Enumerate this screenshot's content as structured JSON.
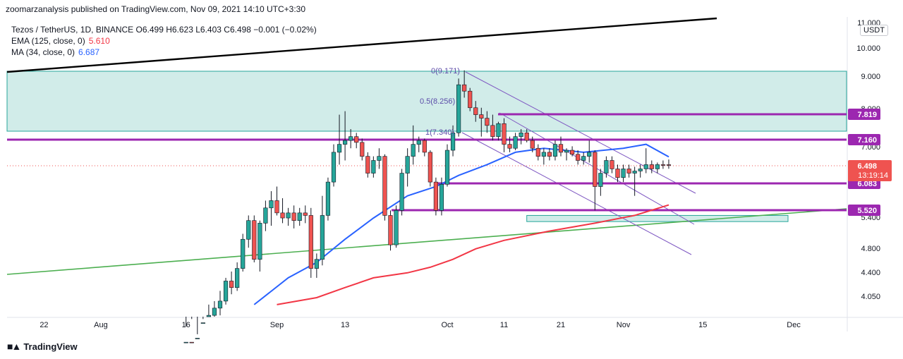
{
  "header": {
    "publish_line": "zoomarzanalysis published on TradingView.com, Nov 09, 2021 14:10 UTC+3:30"
  },
  "legend": {
    "main": "Tezos / TetherUS, 1D, BINANCE  O6.499  H6.623  L6.403  C6.498  −0.001 (−0.02%)",
    "ema_label": "EMA (125, close, 0)",
    "ema_value": "5.610",
    "ma_label": "MA (34, close, 0)",
    "ma_value": "6.687"
  },
  "currency": "USDT",
  "footer": {
    "brand": "TradingView"
  },
  "colors": {
    "up": "#26a69a",
    "down": "#ef5350",
    "ema": "#f23645",
    "ma": "#2962ff",
    "level": "#9c27b0",
    "zone_fill": "#b2dfdb",
    "channel": "#7e57c2",
    "trend_green": "#4caf50",
    "trend_black": "#000000"
  },
  "chart_data": {
    "type": "candlestick",
    "title": "Tezos / TetherUS, 1D, BINANCE",
    "y_axis_scale": "log",
    "y_ticks": [
      "11.000",
      "10.000",
      "9.000",
      "8.000",
      "7.000",
      "6.000",
      "5.400",
      "4.800",
      "4.400",
      "4.050"
    ],
    "x_ticks": [
      {
        "label": "22",
        "date": "2021-07-22"
      },
      {
        "label": "Aug",
        "date": "2021-08-01"
      },
      {
        "label": "16",
        "date": "2021-08-16"
      },
      {
        "label": "Sep",
        "date": "2021-09-01"
      },
      {
        "label": "13",
        "date": "2021-09-13"
      },
      {
        "label": "Oct",
        "date": "2021-10-01"
      },
      {
        "label": "11",
        "date": "2021-10-11"
      },
      {
        "label": "21",
        "date": "2021-10-21"
      },
      {
        "label": "Nov",
        "date": "2021-11-01"
      },
      {
        "label": "15",
        "date": "2021-11-15"
      },
      {
        "label": "Dec",
        "date": "2021-12-01"
      }
    ],
    "candles": [
      {
        "d": "2021-08-16",
        "o": 3.3,
        "h": 3.6,
        "l": 3.1,
        "c": 3.4
      },
      {
        "d": "2021-08-17",
        "o": 3.4,
        "h": 3.7,
        "l": 3.2,
        "c": 3.3
      },
      {
        "d": "2021-08-18",
        "o": 3.3,
        "h": 3.5,
        "l": 3.15,
        "c": 3.45
      },
      {
        "d": "2021-08-19",
        "o": 3.45,
        "h": 3.7,
        "l": 3.35,
        "c": 3.65
      },
      {
        "d": "2021-08-20",
        "o": 3.65,
        "h": 3.9,
        "l": 3.55,
        "c": 3.75
      },
      {
        "d": "2021-08-21",
        "o": 3.75,
        "h": 3.95,
        "l": 3.6,
        "c": 3.85
      },
      {
        "d": "2021-08-22",
        "o": 3.85,
        "h": 4.1,
        "l": 3.75,
        "c": 3.95
      },
      {
        "d": "2021-08-23",
        "o": 3.95,
        "h": 4.3,
        "l": 3.9,
        "c": 4.25
      },
      {
        "d": "2021-08-24",
        "o": 4.25,
        "h": 4.4,
        "l": 4.05,
        "c": 4.15
      },
      {
        "d": "2021-08-25",
        "o": 4.15,
        "h": 4.55,
        "l": 4.1,
        "c": 4.45
      },
      {
        "d": "2021-08-26",
        "o": 4.45,
        "h": 5.05,
        "l": 4.4,
        "c": 4.95
      },
      {
        "d": "2021-08-27",
        "o": 4.95,
        "h": 5.4,
        "l": 4.8,
        "c": 5.3
      },
      {
        "d": "2021-08-28",
        "o": 5.3,
        "h": 5.4,
        "l": 4.55,
        "c": 4.6
      },
      {
        "d": "2021-08-29",
        "o": 4.6,
        "h": 5.3,
        "l": 4.4,
        "c": 5.25
      },
      {
        "d": "2021-08-30",
        "o": 5.25,
        "h": 5.7,
        "l": 5.1,
        "c": 5.55
      },
      {
        "d": "2021-08-31",
        "o": 5.55,
        "h": 5.9,
        "l": 5.2,
        "c": 5.7
      },
      {
        "d": "2021-09-01",
        "o": 5.7,
        "h": 6.0,
        "l": 5.4,
        "c": 5.45
      },
      {
        "d": "2021-09-02",
        "o": 5.45,
        "h": 5.75,
        "l": 5.25,
        "c": 5.35
      },
      {
        "d": "2021-09-03",
        "o": 5.35,
        "h": 5.55,
        "l": 5.2,
        "c": 5.45
      },
      {
        "d": "2021-09-04",
        "o": 5.45,
        "h": 5.6,
        "l": 5.15,
        "c": 5.3
      },
      {
        "d": "2021-09-05",
        "o": 5.3,
        "h": 5.55,
        "l": 5.2,
        "c": 5.45
      },
      {
        "d": "2021-09-06",
        "o": 5.45,
        "h": 5.6,
        "l": 5.25,
        "c": 5.4
      },
      {
        "d": "2021-09-07",
        "o": 5.4,
        "h": 5.55,
        "l": 4.3,
        "c": 4.45
      },
      {
        "d": "2021-09-08",
        "o": 4.45,
        "h": 4.7,
        "l": 4.3,
        "c": 4.6
      },
      {
        "d": "2021-09-09",
        "o": 4.6,
        "h": 5.8,
        "l": 4.5,
        "c": 5.4
      },
      {
        "d": "2021-09-10",
        "o": 5.4,
        "h": 6.2,
        "l": 5.3,
        "c": 6.1
      },
      {
        "d": "2021-09-11",
        "o": 6.1,
        "h": 7.0,
        "l": 6.0,
        "c": 6.8
      },
      {
        "d": "2021-09-12",
        "o": 6.8,
        "h": 7.8,
        "l": 6.5,
        "c": 7.0
      },
      {
        "d": "2021-09-13",
        "o": 7.0,
        "h": 7.9,
        "l": 6.6,
        "c": 7.1
      },
      {
        "d": "2021-09-14",
        "o": 7.1,
        "h": 7.4,
        "l": 6.9,
        "c": 7.2
      },
      {
        "d": "2021-09-15",
        "o": 7.2,
        "h": 7.3,
        "l": 6.9,
        "c": 7.05
      },
      {
        "d": "2021-09-16",
        "o": 7.05,
        "h": 7.15,
        "l": 6.6,
        "c": 6.7
      },
      {
        "d": "2021-09-17",
        "o": 6.7,
        "h": 6.8,
        "l": 6.2,
        "c": 6.3
      },
      {
        "d": "2021-09-18",
        "o": 6.3,
        "h": 6.7,
        "l": 6.2,
        "c": 6.6
      },
      {
        "d": "2021-09-19",
        "o": 6.6,
        "h": 6.9,
        "l": 6.4,
        "c": 6.7
      },
      {
        "d": "2021-09-20",
        "o": 6.7,
        "h": 6.75,
        "l": 5.3,
        "c": 5.4
      },
      {
        "d": "2021-09-21",
        "o": 5.4,
        "h": 5.5,
        "l": 4.75,
        "c": 4.85
      },
      {
        "d": "2021-09-22",
        "o": 4.85,
        "h": 5.6,
        "l": 4.8,
        "c": 5.5
      },
      {
        "d": "2021-09-23",
        "o": 5.5,
        "h": 6.4,
        "l": 5.4,
        "c": 6.3
      },
      {
        "d": "2021-09-24",
        "o": 6.3,
        "h": 6.9,
        "l": 6.0,
        "c": 6.7
      },
      {
        "d": "2021-09-25",
        "o": 6.7,
        "h": 7.5,
        "l": 6.5,
        "c": 7.0
      },
      {
        "d": "2021-09-26",
        "o": 7.0,
        "h": 7.2,
        "l": 6.8,
        "c": 7.1
      },
      {
        "d": "2021-09-27",
        "o": 7.1,
        "h": 7.15,
        "l": 6.7,
        "c": 6.8
      },
      {
        "d": "2021-09-28",
        "o": 6.8,
        "h": 6.85,
        "l": 6.0,
        "c": 6.1
      },
      {
        "d": "2021-09-29",
        "o": 6.1,
        "h": 6.2,
        "l": 5.4,
        "c": 5.5
      },
      {
        "d": "2021-09-30",
        "o": 5.5,
        "h": 6.2,
        "l": 5.4,
        "c": 6.05
      },
      {
        "d": "2021-10-01",
        "o": 6.05,
        "h": 7.0,
        "l": 6.0,
        "c": 6.85
      },
      {
        "d": "2021-10-02",
        "o": 6.85,
        "h": 7.5,
        "l": 6.7,
        "c": 7.3
      },
      {
        "d": "2021-10-03",
        "o": 7.3,
        "h": 8.9,
        "l": 7.2,
        "c": 8.7
      },
      {
        "d": "2021-10-04",
        "o": 8.7,
        "h": 9.17,
        "l": 8.3,
        "c": 8.5
      },
      {
        "d": "2021-10-05",
        "o": 8.5,
        "h": 8.6,
        "l": 7.9,
        "c": 8.0
      },
      {
        "d": "2021-10-06",
        "o": 8.0,
        "h": 8.2,
        "l": 7.6,
        "c": 7.8
      },
      {
        "d": "2021-10-07",
        "o": 7.8,
        "h": 8.0,
        "l": 7.2,
        "c": 7.7
      },
      {
        "d": "2021-10-08",
        "o": 7.7,
        "h": 7.9,
        "l": 7.3,
        "c": 7.5
      },
      {
        "d": "2021-10-09",
        "o": 7.5,
        "h": 7.8,
        "l": 7.1,
        "c": 7.2
      },
      {
        "d": "2021-10-10",
        "o": 7.2,
        "h": 7.6,
        "l": 7.1,
        "c": 7.55
      },
      {
        "d": "2021-10-11",
        "o": 7.55,
        "h": 7.7,
        "l": 6.8,
        "c": 7.0
      },
      {
        "d": "2021-10-12",
        "o": 7.0,
        "h": 7.2,
        "l": 6.8,
        "c": 6.9
      },
      {
        "d": "2021-10-13",
        "o": 6.9,
        "h": 7.3,
        "l": 6.85,
        "c": 7.2
      },
      {
        "d": "2021-10-14",
        "o": 7.2,
        "h": 7.4,
        "l": 7.0,
        "c": 7.3
      },
      {
        "d": "2021-10-15",
        "o": 7.3,
        "h": 7.4,
        "l": 7.05,
        "c": 7.1
      },
      {
        "d": "2021-10-16",
        "o": 7.1,
        "h": 7.2,
        "l": 6.8,
        "c": 6.9
      },
      {
        "d": "2021-10-17",
        "o": 6.9,
        "h": 7.0,
        "l": 6.6,
        "c": 6.7
      },
      {
        "d": "2021-10-18",
        "o": 6.7,
        "h": 6.9,
        "l": 6.5,
        "c": 6.8
      },
      {
        "d": "2021-10-19",
        "o": 6.8,
        "h": 6.9,
        "l": 6.6,
        "c": 6.7
      },
      {
        "d": "2021-10-20",
        "o": 6.7,
        "h": 7.1,
        "l": 6.6,
        "c": 7.0
      },
      {
        "d": "2021-10-21",
        "o": 7.0,
        "h": 7.2,
        "l": 6.7,
        "c": 6.8
      },
      {
        "d": "2021-10-22",
        "o": 6.8,
        "h": 6.9,
        "l": 6.6,
        "c": 6.85
      },
      {
        "d": "2021-10-23",
        "o": 6.85,
        "h": 6.95,
        "l": 6.7,
        "c": 6.75
      },
      {
        "d": "2021-10-24",
        "o": 6.75,
        "h": 6.85,
        "l": 6.5,
        "c": 6.6
      },
      {
        "d": "2021-10-25",
        "o": 6.6,
        "h": 6.8,
        "l": 6.5,
        "c": 6.7
      },
      {
        "d": "2021-10-26",
        "o": 6.7,
        "h": 7.1,
        "l": 6.55,
        "c": 6.8
      },
      {
        "d": "2021-10-27",
        "o": 6.8,
        "h": 6.85,
        "l": 5.5,
        "c": 6.0
      },
      {
        "d": "2021-10-28",
        "o": 6.0,
        "h": 6.4,
        "l": 5.8,
        "c": 6.3
      },
      {
        "d": "2021-10-29",
        "o": 6.3,
        "h": 6.7,
        "l": 6.2,
        "c": 6.6
      },
      {
        "d": "2021-10-30",
        "o": 6.6,
        "h": 6.7,
        "l": 6.3,
        "c": 6.4
      },
      {
        "d": "2021-10-31",
        "o": 6.4,
        "h": 6.5,
        "l": 6.1,
        "c": 6.2
      },
      {
        "d": "2021-11-01",
        "o": 6.2,
        "h": 6.5,
        "l": 6.1,
        "c": 6.4
      },
      {
        "d": "2021-11-02",
        "o": 6.4,
        "h": 6.5,
        "l": 6.2,
        "c": 6.3
      },
      {
        "d": "2021-11-03",
        "o": 6.3,
        "h": 6.45,
        "l": 5.8,
        "c": 6.35
      },
      {
        "d": "2021-11-04",
        "o": 6.35,
        "h": 6.5,
        "l": 6.2,
        "c": 6.4
      },
      {
        "d": "2021-11-05",
        "o": 6.4,
        "h": 6.9,
        "l": 6.3,
        "c": 6.5
      },
      {
        "d": "2021-11-06",
        "o": 6.5,
        "h": 6.6,
        "l": 6.3,
        "c": 6.4
      },
      {
        "d": "2021-11-07",
        "o": 6.4,
        "h": 6.55,
        "l": 6.3,
        "c": 6.5
      },
      {
        "d": "2021-11-08",
        "o": 6.5,
        "h": 6.6,
        "l": 6.4,
        "c": 6.499
      },
      {
        "d": "2021-11-09",
        "o": 6.499,
        "h": 6.623,
        "l": 6.403,
        "c": 6.498
      }
    ],
    "series": [
      {
        "name": "EMA (125, close, 0)",
        "points": [
          [
            "2021-09-01",
            3.9
          ],
          [
            "2021-09-08",
            4.0
          ],
          [
            "2021-09-13",
            4.15
          ],
          [
            "2021-09-18",
            4.3
          ],
          [
            "2021-09-24",
            4.38
          ],
          [
            "2021-09-28",
            4.47
          ],
          [
            "2021-10-02",
            4.6
          ],
          [
            "2021-10-06",
            4.78
          ],
          [
            "2021-10-11",
            4.93
          ],
          [
            "2021-10-19",
            5.1
          ],
          [
            "2021-10-27",
            5.25
          ],
          [
            "2021-11-03",
            5.4
          ],
          [
            "2021-11-09",
            5.61
          ]
        ]
      },
      {
        "name": "MA (34, close, 0)",
        "points": [
          [
            "2021-08-28",
            3.9
          ],
          [
            "2021-09-03",
            4.3
          ],
          [
            "2021-09-08",
            4.55
          ],
          [
            "2021-09-13",
            4.95
          ],
          [
            "2021-09-18",
            5.35
          ],
          [
            "2021-09-24",
            5.8
          ],
          [
            "2021-09-29",
            6.0
          ],
          [
            "2021-10-03",
            6.25
          ],
          [
            "2021-10-08",
            6.5
          ],
          [
            "2021-10-13",
            6.8
          ],
          [
            "2021-10-18",
            6.9
          ],
          [
            "2021-10-25",
            6.8
          ],
          [
            "2021-11-01",
            6.9
          ],
          [
            "2021-11-05",
            7.0
          ],
          [
            "2021-11-09",
            6.687
          ]
        ]
      }
    ],
    "horizontal_levels": [
      7.819,
      7.16,
      6.083,
      5.52
    ],
    "zones": [
      {
        "from": 7.4,
        "to": 9.17,
        "start": "2021-07-22",
        "end": "2021-12-08"
      },
      {
        "from": 5.28,
        "to": 5.4,
        "start": "2021-10-15",
        "end": "2021-11-30"
      }
    ],
    "fib_labels": [
      {
        "label": "0(9.171)",
        "value": 9.171
      },
      {
        "label": "0.5(8.256)",
        "value": 8.256
      },
      {
        "label": "1(7.340)",
        "value": 7.34
      }
    ],
    "last_price": {
      "value": "6.498",
      "countdown": "13:19:14"
    }
  }
}
